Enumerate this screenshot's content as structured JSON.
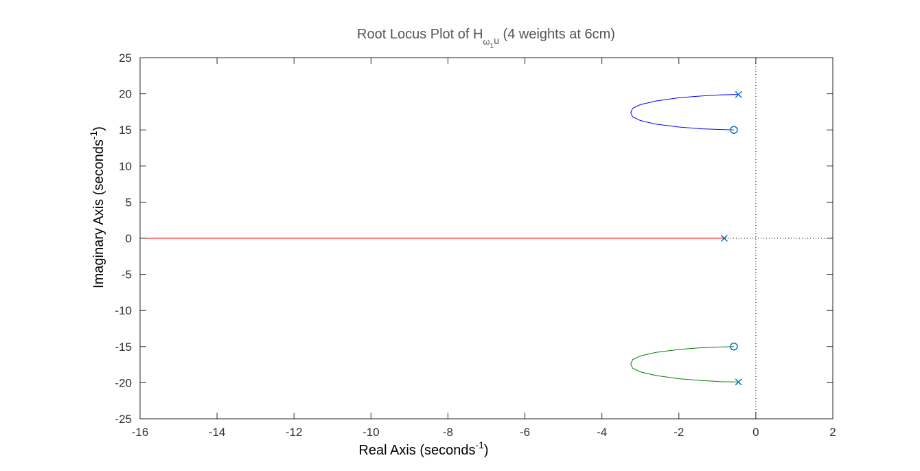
{
  "chart_data": {
    "type": "scatter",
    "title": {
      "prefix": "Root Locus Plot of H",
      "sub": "ω",
      "subsub": "1",
      "sub_tail": "u",
      "suffix": " (4 weights at 6cm)"
    },
    "xlabel": {
      "text": "Real Axis (seconds",
      "sup": "-1",
      "tail": ")"
    },
    "ylabel": {
      "text": "Imaginary Axis (seconds",
      "sup": "-1",
      "tail": ")"
    },
    "xlim": [
      -16,
      2
    ],
    "ylim": [
      -25,
      25
    ],
    "xticks": [
      "-16",
      "-14",
      "-12",
      "-10",
      "-8",
      "-6",
      "-4",
      "-2",
      "0",
      "2"
    ],
    "yticks": [
      "25",
      "20",
      "15",
      "10",
      "5",
      "0",
      "-5",
      "-10",
      "-15",
      "-20",
      "-25"
    ],
    "grid": false,
    "box": true,
    "reference_lines": {
      "x": 0,
      "y": 0,
      "style": "dotted"
    },
    "colors": {
      "branch_upper": "#0000ff",
      "branch_lower": "#007f00",
      "branch_real": "#ff0000",
      "markers": "#0072bd"
    },
    "series": [
      {
        "kind": "branch",
        "color_key": "branch_upper",
        "x": [
          -0.45,
          -0.9,
          -1.4,
          -2.0,
          -2.6,
          -3.0,
          -3.2,
          -3.25,
          -3.2,
          -3.0,
          -2.6,
          -2.0,
          -1.4,
          -0.9,
          -0.57
        ],
        "y": [
          19.9,
          19.85,
          19.7,
          19.45,
          19.0,
          18.5,
          18.0,
          17.4,
          16.8,
          16.3,
          15.8,
          15.4,
          15.15,
          15.05,
          15.0
        ]
      },
      {
        "kind": "branch",
        "color_key": "branch_lower",
        "x": [
          -0.45,
          -0.9,
          -1.4,
          -2.0,
          -2.6,
          -3.0,
          -3.2,
          -3.25,
          -3.2,
          -3.0,
          -2.6,
          -2.0,
          -1.4,
          -0.9,
          -0.57
        ],
        "y": [
          -19.9,
          -19.85,
          -19.7,
          -19.45,
          -19.0,
          -18.5,
          -18.0,
          -17.4,
          -16.8,
          -16.3,
          -15.8,
          -15.4,
          -15.15,
          -15.05,
          -15.0
        ]
      },
      {
        "kind": "branch",
        "color_key": "branch_real",
        "x": [
          -0.82,
          -16
        ],
        "y": [
          0,
          0
        ]
      }
    ],
    "poles": [
      {
        "x": -0.45,
        "y": 19.9
      },
      {
        "x": -0.82,
        "y": 0
      },
      {
        "x": -0.45,
        "y": -19.9
      }
    ],
    "zeros": [
      {
        "x": -0.57,
        "y": 15.0
      },
      {
        "x": -0.57,
        "y": -15.0
      }
    ]
  }
}
